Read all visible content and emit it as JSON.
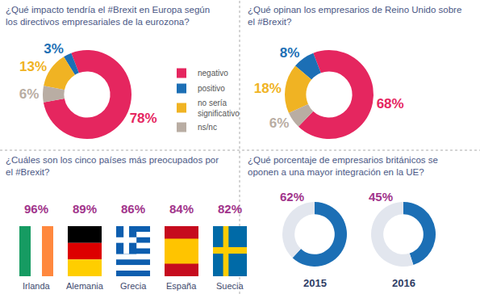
{
  "chart_data": [
    {
      "type": "pie",
      "title": "¿Qué impacto tendría el #Brexit en Europa según los directivos empresariales de la eurozona?",
      "categories": [
        "negativo",
        "positivo",
        "no sería significativo",
        "ns/nc"
      ],
      "values": [
        78,
        3,
        13,
        6
      ],
      "value_labels": [
        "78%",
        "3%",
        "13%",
        "6%"
      ],
      "colors": [
        "#e5265f",
        "#1c6fb5",
        "#f0b323",
        "#b9ada3"
      ],
      "data_labels": true,
      "legend": "right"
    },
    {
      "type": "pie",
      "title": "¿Qué opinan los empresarios de Reino Unido sobre el #Brexit?",
      "categories": [
        "negativo",
        "positivo",
        "no sería significativo",
        "ns/nc"
      ],
      "values": [
        68,
        8,
        18,
        6
      ],
      "value_labels": [
        "68%",
        "8%",
        "18%",
        "6%"
      ],
      "colors": [
        "#e5265f",
        "#1c6fb5",
        "#f0b323",
        "#b9ada3"
      ],
      "data_labels": true,
      "legend": "right"
    },
    {
      "type": "flags",
      "title": "¿Cuáles son los cinco países más preocupados por el #Brexit?",
      "categories": [
        "Irlanda",
        "Alemania",
        "Grecia",
        "España",
        "Suecia"
      ],
      "values": [
        96,
        89,
        86,
        84,
        82
      ],
      "value_labels": [
        "96%",
        "89%",
        "86%",
        "84%",
        "82%"
      ],
      "data_labels": true
    },
    {
      "type": "gauge",
      "title": "¿Qué porcentaje de empresarios británicos se oponen a una mayor integración en la UE?",
      "categories": [
        "2015",
        "2016"
      ],
      "values": [
        62,
        45
      ],
      "value_labels": [
        "62%",
        "45%"
      ],
      "ylim": [
        0,
        100
      ],
      "color": "#1c6fb5",
      "data_labels": true
    }
  ]
}
